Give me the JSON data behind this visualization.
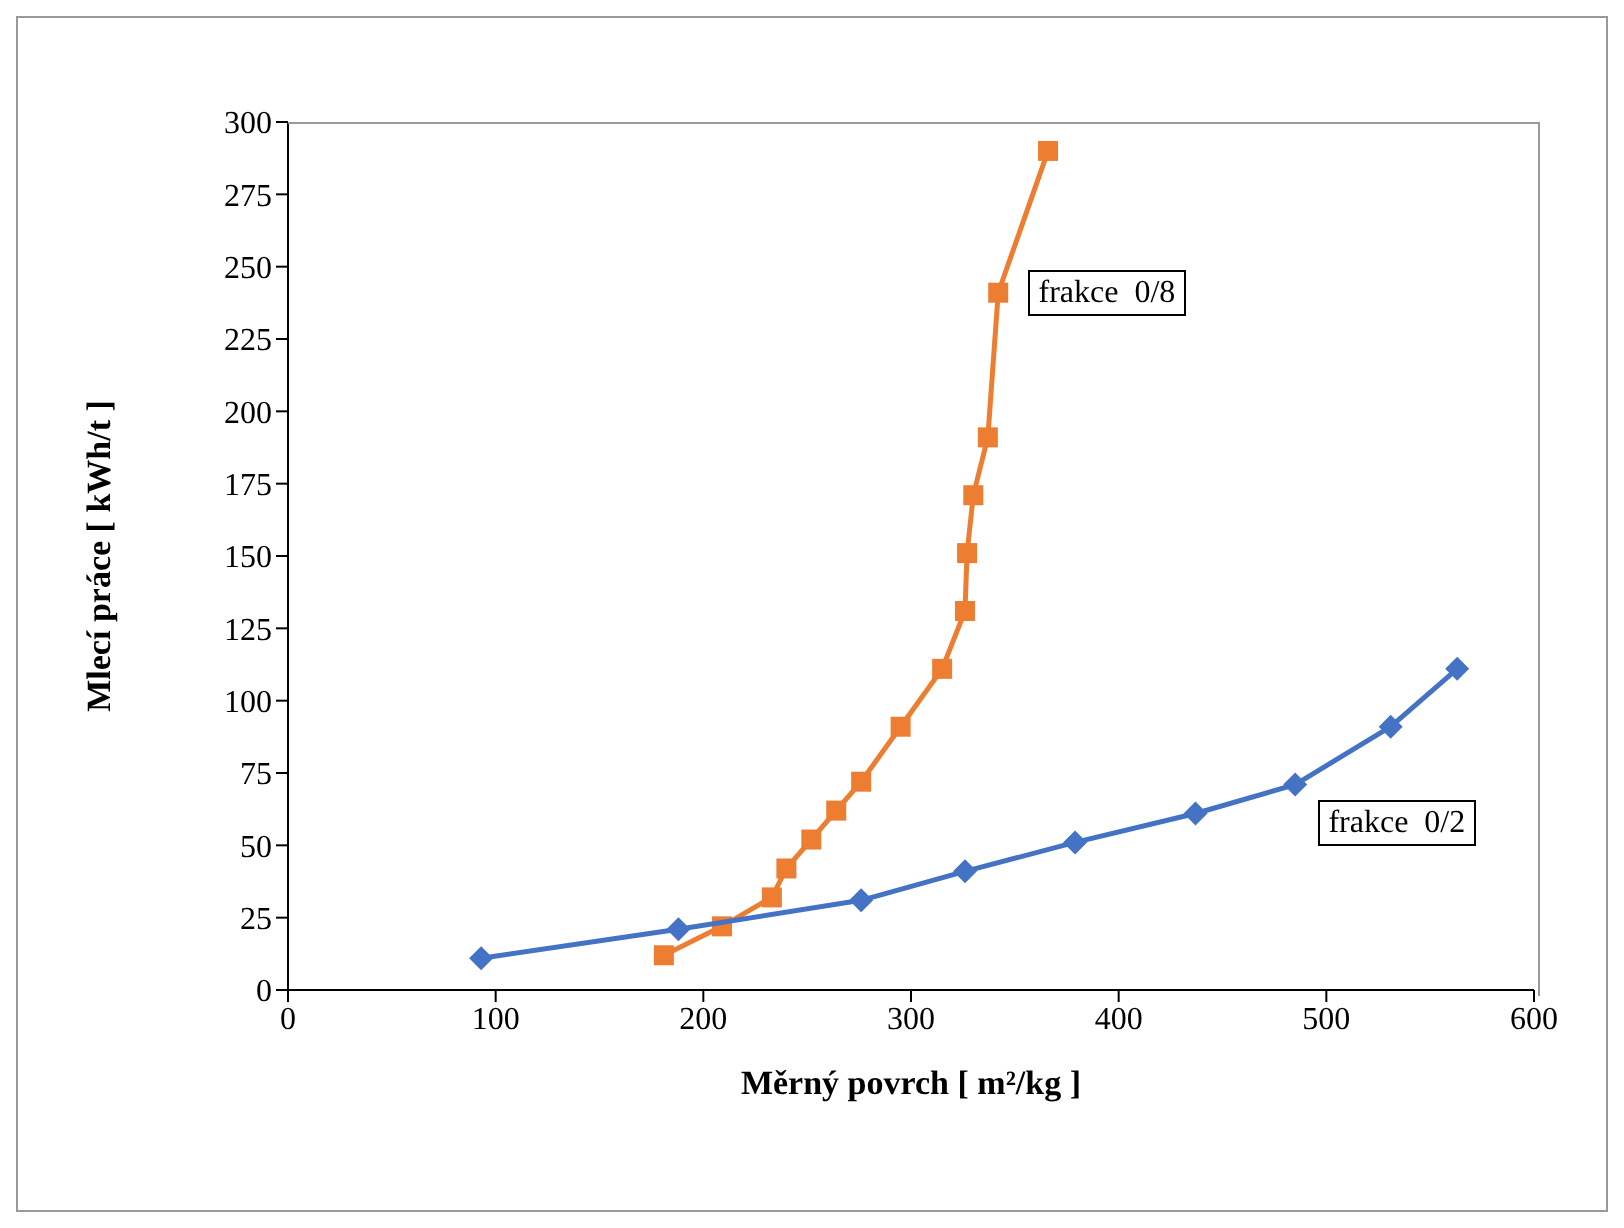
{
  "chart_data": {
    "type": "line",
    "xlabel": "Měrný povrch  [ m²/kg ]",
    "ylabel": "Mlecí práce  [ kWh/t ]",
    "xlim": [
      0,
      600
    ],
    "xticks": [
      0,
      100,
      200,
      300,
      400,
      500,
      600
    ],
    "ylim": [
      0,
      300
    ],
    "yticks": [
      0,
      25,
      50,
      75,
      100,
      125,
      150,
      175,
      200,
      225,
      250,
      275,
      300
    ],
    "grid": false,
    "legend": false,
    "line_style": "solid",
    "series": [
      {
        "name": "frakce  0/8",
        "color": "#ed7d31",
        "marker": "square",
        "x": [
          181,
          209,
          233,
          240,
          252,
          264,
          276,
          295,
          315,
          326,
          327,
          330,
          337,
          342,
          366
        ],
        "values": [
          12,
          22,
          32,
          42,
          52,
          62,
          72,
          91,
          111,
          131,
          151,
          171,
          191,
          241,
          290
        ]
      },
      {
        "name": "frakce  0/2",
        "color": "#4472c4",
        "marker": "diamond",
        "x": [
          93,
          188,
          276,
          326,
          379,
          437,
          485,
          531,
          563
        ],
        "values": [
          11,
          21,
          31,
          41,
          51,
          61,
          71,
          91,
          111
        ]
      }
    ]
  }
}
